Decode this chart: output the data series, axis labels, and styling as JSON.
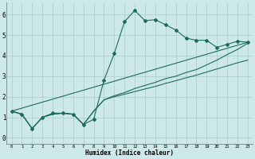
{
  "background_color": "#cce8e8",
  "grid_color": "#aacccc",
  "line_color": "#1e6b5e",
  "xlabel": "Humidex (Indice chaleur)",
  "xlim": [
    -0.5,
    23.5
  ],
  "ylim": [
    -0.3,
    6.6
  ],
  "xticks": [
    0,
    1,
    2,
    3,
    4,
    5,
    6,
    7,
    8,
    9,
    10,
    11,
    12,
    13,
    14,
    15,
    16,
    17,
    18,
    19,
    20,
    21,
    22,
    23
  ],
  "yticks": [
    0,
    1,
    2,
    3,
    4,
    5,
    6
  ],
  "series1_x": [
    0,
    1,
    2,
    3,
    4,
    5,
    6,
    7,
    8,
    9,
    10,
    11,
    12,
    13,
    14,
    15,
    16,
    17,
    18,
    19,
    20,
    21,
    22,
    23
  ],
  "series1_y": [
    1.3,
    1.15,
    0.45,
    1.0,
    1.2,
    1.2,
    1.15,
    0.65,
    0.9,
    2.8,
    4.1,
    5.65,
    6.2,
    5.7,
    5.75,
    5.5,
    5.25,
    4.85,
    4.75,
    4.75,
    4.4,
    4.55,
    4.7,
    4.65
  ],
  "series2_x": [
    0,
    1,
    2,
    3,
    4,
    5,
    6,
    7,
    8,
    9,
    10,
    11,
    12,
    13,
    14,
    15,
    16,
    17,
    18,
    19,
    20,
    21,
    22,
    23
  ],
  "series2_y": [
    1.3,
    1.15,
    0.45,
    1.0,
    1.15,
    1.2,
    1.15,
    0.65,
    1.3,
    1.85,
    2.0,
    2.12,
    2.25,
    2.38,
    2.5,
    2.65,
    2.78,
    2.92,
    3.05,
    3.2,
    3.35,
    3.5,
    3.65,
    3.78
  ],
  "series3_x": [
    0,
    1,
    2,
    3,
    4,
    5,
    6,
    7,
    8,
    9,
    10,
    11,
    12,
    13,
    14,
    15,
    16,
    17,
    18,
    19,
    20,
    21,
    22,
    23
  ],
  "series3_y": [
    1.3,
    1.15,
    0.45,
    1.0,
    1.15,
    1.2,
    1.15,
    0.65,
    1.3,
    1.85,
    2.05,
    2.2,
    2.4,
    2.55,
    2.7,
    2.88,
    3.0,
    3.18,
    3.32,
    3.55,
    3.78,
    4.05,
    4.3,
    4.6
  ],
  "series4_x": [
    0,
    23
  ],
  "series4_y": [
    1.3,
    4.65
  ],
  "figsize": [
    3.2,
    2.0
  ],
  "dpi": 100
}
